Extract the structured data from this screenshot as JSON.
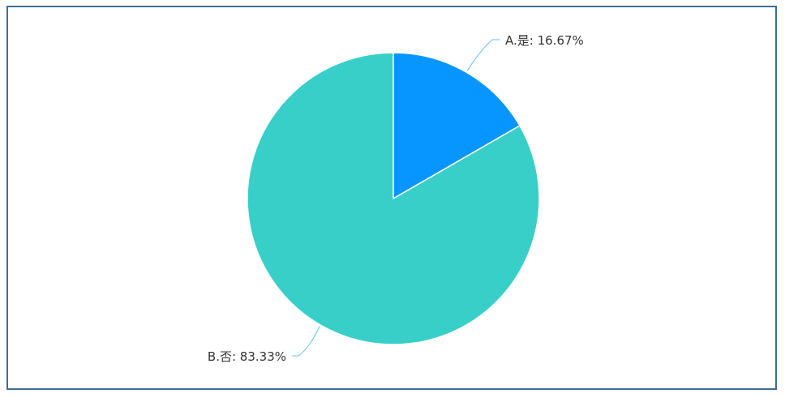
{
  "chart_data": {
    "type": "pie",
    "title": "",
    "slices": [
      {
        "label": "A.是",
        "value": 16.67,
        "display": "A.是: 16.67%",
        "color": "#0796ff"
      },
      {
        "label": "B.否",
        "value": 83.33,
        "display": "B.否: 83.33%",
        "color": "#38cfc9"
      }
    ],
    "legend": "none",
    "label_line_color": "#67c1f0",
    "separator_color": "#ffffff"
  }
}
